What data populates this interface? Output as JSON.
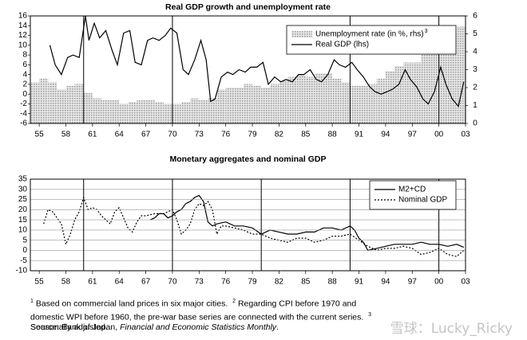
{
  "chart_data": [
    {
      "type": "combo",
      "title": "Real GDP growth and unemployment rate",
      "xlim": [
        1954,
        2003
      ],
      "xticks": [
        {
          "value": 1955,
          "label": "55"
        },
        {
          "value": 1958,
          "label": "58"
        },
        {
          "value": 1961,
          "label": "61"
        },
        {
          "value": 1964,
          "label": "64"
        },
        {
          "value": 1967,
          "label": "67"
        },
        {
          "value": 1970,
          "label": "70"
        },
        {
          "value": 1973,
          "label": "73"
        },
        {
          "value": 1976,
          "label": "76"
        },
        {
          "value": 1979,
          "label": "79"
        },
        {
          "value": 1982,
          "label": "82"
        },
        {
          "value": 1985,
          "label": "85"
        },
        {
          "value": 1988,
          "label": "88"
        },
        {
          "value": 1991,
          "label": "91"
        },
        {
          "value": 1994,
          "label": "94"
        },
        {
          "value": 1997,
          "label": "97"
        },
        {
          "value": 2000,
          "label": "00"
        },
        {
          "value": 2003,
          "label": "03"
        }
      ],
      "xgrid": [
        1960,
        1970,
        1990,
        2000
      ],
      "ylim": [
        -6,
        16
      ],
      "yticks": [
        -6,
        -4,
        -2,
        0,
        2,
        4,
        6,
        8,
        10,
        12,
        14,
        16
      ],
      "y2lim": [
        0,
        6
      ],
      "y2ticks": [
        0,
        1,
        2,
        3,
        4,
        5,
        6
      ],
      "grid": false,
      "legend": "upper right",
      "series": [
        {
          "name": "Unemployment rate (in %, rhs)",
          "name_note": "3",
          "mark": "bar",
          "axis": "y2",
          "color": "#b8b8b8",
          "x": [
            1954,
            1955,
            1956,
            1957,
            1958,
            1959,
            1960,
            1961,
            1962,
            1963,
            1964,
            1965,
            1966,
            1967,
            1968,
            1969,
            1970,
            1971,
            1972,
            1973,
            1974,
            1975,
            1976,
            1977,
            1978,
            1979,
            1980,
            1981,
            1982,
            1983,
            1984,
            1985,
            1986,
            1987,
            1988,
            1989,
            1990,
            1991,
            1992,
            1993,
            1994,
            1995,
            1996,
            1997,
            1998,
            1999,
            2000,
            2001,
            2002
          ],
          "values": [
            2.3,
            2.5,
            2.3,
            1.9,
            2.1,
            2.2,
            1.7,
            1.4,
            1.3,
            1.3,
            1.1,
            1.2,
            1.3,
            1.3,
            1.2,
            1.1,
            1.1,
            1.2,
            1.4,
            1.3,
            1.4,
            1.9,
            2.0,
            2.0,
            2.2,
            2.1,
            2.0,
            2.2,
            2.4,
            2.6,
            2.7,
            2.6,
            2.8,
            2.8,
            2.5,
            2.3,
            2.1,
            2.1,
            2.2,
            2.5,
            2.9,
            3.2,
            3.4,
            3.4,
            4.1,
            4.7,
            4.7,
            5.0,
            5.4
          ]
        },
        {
          "name": "Real GDP (lhs)",
          "mark": "line",
          "color": "#000000",
          "x": [
            1956.2,
            1956.8,
            1957.5,
            1958.2,
            1958.8,
            1959.5,
            1960.2,
            1960.6,
            1961.2,
            1961.8,
            1962.5,
            1963.2,
            1963.8,
            1964.5,
            1965.2,
            1965.8,
            1966.5,
            1967.2,
            1967.8,
            1968.5,
            1969.2,
            1969.8,
            1970.5,
            1971.2,
            1971.8,
            1972.5,
            1973.2,
            1973.8,
            1974.3,
            1974.8,
            1975.5,
            1976.2,
            1976.8,
            1977.5,
            1978.2,
            1978.8,
            1979.5,
            1980.2,
            1980.8,
            1981.5,
            1982.2,
            1982.8,
            1983.5,
            1984.2,
            1984.8,
            1985.5,
            1986.2,
            1986.8,
            1987.5,
            1988.2,
            1988.8,
            1989.5,
            1990.2,
            1990.8,
            1991.5,
            1992.2,
            1992.8,
            1993.5,
            1994.2,
            1994.8,
            1995.5,
            1996.2,
            1996.8,
            1997.5,
            1998.2,
            1998.8,
            1999.5,
            2000.2,
            2000.8,
            2001.5,
            2002.2,
            2002.8
          ],
          "values": [
            10,
            6,
            4,
            7.5,
            8,
            7.5,
            16,
            11,
            14.5,
            11.5,
            13,
            9,
            6,
            12.5,
            13,
            6.5,
            6,
            11,
            11.5,
            11,
            12,
            13.5,
            12.5,
            5,
            4,
            7,
            11,
            7,
            -1.5,
            -1,
            3.5,
            4.5,
            4,
            5,
            4.5,
            5.5,
            5.5,
            6.5,
            2,
            3.5,
            2.5,
            3,
            2.5,
            4,
            4,
            5,
            3,
            2.5,
            4,
            7,
            6,
            5.5,
            6.5,
            5,
            3.5,
            1.5,
            0.5,
            0,
            0.5,
            1,
            2,
            5,
            3,
            1.5,
            -1,
            -2,
            0.5,
            5.5,
            2,
            -1,
            -2.5,
            2.5
          ]
        }
      ]
    },
    {
      "type": "line",
      "title": "Monetary aggregates and nominal GDP",
      "xlim": [
        1954,
        2003
      ],
      "xticks": [
        {
          "value": 1955,
          "label": "55"
        },
        {
          "value": 1958,
          "label": "58"
        },
        {
          "value": 1961,
          "label": "61"
        },
        {
          "value": 1964,
          "label": "64"
        },
        {
          "value": 1967,
          "label": "67"
        },
        {
          "value": 1970,
          "label": "70"
        },
        {
          "value": 1973,
          "label": "73"
        },
        {
          "value": 1976,
          "label": "76"
        },
        {
          "value": 1979,
          "label": "79"
        },
        {
          "value": 1982,
          "label": "82"
        },
        {
          "value": 1985,
          "label": "85"
        },
        {
          "value": 1988,
          "label": "88"
        },
        {
          "value": 1991,
          "label": "91"
        },
        {
          "value": 1994,
          "label": "94"
        },
        {
          "value": 1997,
          "label": "97"
        },
        {
          "value": 2000,
          "label": "00"
        },
        {
          "value": 2003,
          "label": "03"
        }
      ],
      "xgrid": [
        1960,
        1970,
        1980,
        1990,
        2000
      ],
      "ylim": [
        -10,
        35
      ],
      "yticks": [
        -10,
        -5,
        0,
        5,
        10,
        15,
        20,
        25,
        30,
        35
      ],
      "grid": true,
      "legend": "upper right",
      "series": [
        {
          "name": "M2+CD",
          "mark": "line",
          "color": "#000000",
          "x": [
            1967.5,
            1968,
            1968.5,
            1969,
            1969.5,
            1970,
            1970.5,
            1971,
            1971.5,
            1972,
            1972.5,
            1973,
            1973.5,
            1974,
            1974.5,
            1975,
            1976,
            1977,
            1978,
            1979,
            1980,
            1981,
            1982,
            1983,
            1984,
            1985,
            1986,
            1987,
            1988,
            1989,
            1990,
            1990.5,
            1991,
            1991.5,
            1992,
            1993,
            1994,
            1995,
            1996,
            1997,
            1998,
            1999,
            2000,
            2001,
            2002,
            2002.8
          ],
          "values": [
            15,
            16,
            18,
            18,
            16,
            17,
            19,
            20,
            23,
            24,
            26,
            27,
            24,
            14,
            12,
            13,
            14,
            12,
            12,
            11,
            8,
            10,
            9,
            8,
            8,
            9,
            9,
            11,
            11,
            10,
            12,
            10,
            6,
            4,
            0,
            1,
            2,
            3,
            3,
            3,
            4,
            3,
            3,
            2,
            3,
            1.5
          ]
        },
        {
          "name": "Nominal GDP",
          "mark": "line",
          "dash": true,
          "color": "#000000",
          "x": [
            1955.5,
            1956,
            1956.5,
            1957,
            1957.5,
            1958,
            1958.5,
            1959,
            1959.5,
            1960,
            1960.5,
            1961,
            1961.5,
            1962,
            1962.5,
            1963,
            1963.5,
            1964,
            1964.5,
            1965,
            1965.5,
            1966,
            1966.5,
            1967,
            1968,
            1969,
            1970,
            1970.5,
            1971,
            1971.5,
            1972,
            1972.5,
            1973,
            1973.5,
            1974,
            1974.5,
            1975,
            1975.5,
            1976,
            1977,
            1978,
            1979,
            1980,
            1981,
            1982,
            1983,
            1984,
            1985,
            1986,
            1987,
            1988,
            1989,
            1990,
            1991,
            1992,
            1993,
            1994,
            1995,
            1996,
            1997,
            1998,
            1999,
            2000,
            2001,
            2002,
            2002.8
          ],
          "values": [
            13,
            20,
            19,
            16,
            13,
            3,
            8,
            15,
            19,
            26,
            20,
            21,
            20,
            17,
            15,
            13,
            19,
            21,
            16,
            11,
            9,
            14,
            17,
            17,
            18,
            18,
            20,
            15,
            8,
            10,
            13,
            20,
            23,
            22,
            24,
            20,
            8,
            12,
            12,
            11,
            10,
            8,
            8,
            6,
            5,
            4,
            6,
            6,
            4,
            5,
            7,
            7,
            8,
            5,
            2,
            0,
            1,
            1,
            2,
            1,
            -2,
            -1,
            1,
            -2,
            -3,
            0
          ]
        }
      ]
    }
  ],
  "footnotes": [
    {
      "mark": "1",
      "text": "Based on commercial land prices in six major cities."
    },
    {
      "mark": "2",
      "text": "Regarding CPI before 1970 and domestic WPI before 1960, the pre-war base series are connected with the current series."
    },
    {
      "mark": "3",
      "text": "Seasonally adjusted."
    }
  ],
  "source": {
    "prefix": "Source: Bank of Japan, ",
    "title": "Financial and Economic Statistics Monthly",
    "suffix": "."
  },
  "watermark": "雪球：Lucky_Ricky"
}
